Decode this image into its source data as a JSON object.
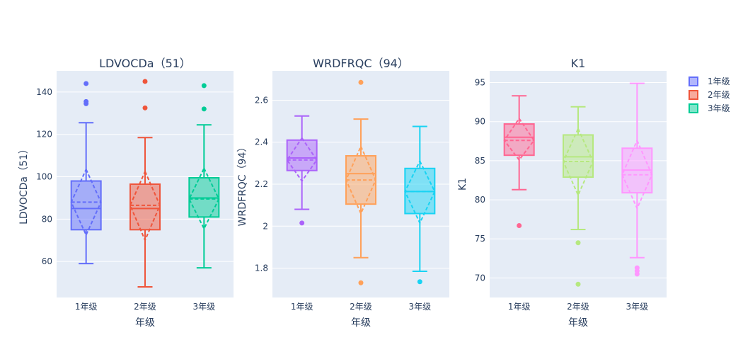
{
  "chart_data": [
    {
      "type": "box",
      "title": "LDVOCDa（51）",
      "xlabel": "年级",
      "ylabel": "LDVOCDa（51）",
      "categories": [
        "1年级",
        "2年级",
        "3年级"
      ],
      "ylim": [
        43,
        150
      ],
      "yticks": [
        60,
        80,
        100,
        120,
        140
      ],
      "ytick_labels": [
        "60",
        "80",
        "100",
        "120",
        "140"
      ],
      "boxes": [
        {
          "name": "1年级",
          "lower_fence": 59,
          "q1": 75,
          "median": 85,
          "mean": 88,
          "q3": 98,
          "upper_fence": 125.5,
          "sd_low": 72.5,
          "sd_high": 103.5,
          "outliers": [
            134.5,
            135.5,
            144
          ]
        },
        {
          "name": "2年级",
          "lower_fence": 48,
          "q1": 75,
          "median": 85,
          "mean": 86.5,
          "q3": 96.5,
          "upper_fence": 118.5,
          "sd_low": 70,
          "sd_high": 102.5,
          "outliers": [
            132.5,
            145
          ]
        },
        {
          "name": "3年级",
          "lower_fence": 57,
          "q1": 81,
          "median": 90,
          "mean": 89.5,
          "q3": 99.5,
          "upper_fence": 124.5,
          "sd_low": 75.5,
          "sd_high": 104,
          "outliers": [
            132,
            143
          ]
        }
      ]
    },
    {
      "type": "box",
      "title": "WRDFRQC（94）",
      "xlabel": "年级",
      "ylabel": "WRDFRQC（94）",
      "categories": [
        "1年级",
        "2年级",
        "3年级"
      ],
      "ylim": [
        1.66,
        2.74
      ],
      "yticks": [
        1.8,
        2.0,
        2.2,
        2.4,
        2.6
      ],
      "ytick_labels": [
        "1.8",
        "2",
        "2.2",
        "2.4",
        "2.6"
      ],
      "boxes": [
        {
          "name": "1年级",
          "lower_fence": 2.08,
          "q1": 2.265,
          "median": 2.325,
          "mean": 2.315,
          "q3": 2.41,
          "upper_fence": 2.525,
          "sd_low": 2.215,
          "sd_high": 2.42,
          "outliers": [
            2.015
          ]
        },
        {
          "name": "2年级",
          "lower_fence": 1.85,
          "q1": 2.105,
          "median": 2.25,
          "mean": 2.22,
          "q3": 2.335,
          "upper_fence": 2.51,
          "sd_low": 2.06,
          "sd_high": 2.38,
          "outliers": [
            1.73,
            2.685
          ]
        },
        {
          "name": "3年级",
          "lower_fence": 1.785,
          "q1": 2.06,
          "median": 2.165,
          "mean": 2.165,
          "q3": 2.275,
          "upper_fence": 2.475,
          "sd_low": 2.015,
          "sd_high": 2.31,
          "outliers": [
            1.735
          ]
        }
      ]
    },
    {
      "type": "box",
      "title": "K1",
      "xlabel": "年级",
      "ylabel": "K1",
      "categories": [
        "1年级",
        "2年级",
        "3年级"
      ],
      "ylim": [
        67.5,
        96.5
      ],
      "yticks": [
        70,
        75,
        80,
        85,
        90,
        95
      ],
      "ytick_labels": [
        "70",
        "75",
        "80",
        "85",
        "90",
        "95"
      ],
      "boxes": [
        {
          "name": "1年级",
          "lower_fence": 81.3,
          "q1": 85.7,
          "median": 88,
          "mean": 87.6,
          "q3": 89.7,
          "upper_fence": 93.3,
          "sd_low": 85.1,
          "sd_high": 90.4,
          "outliers": [
            76.7
          ]
        },
        {
          "name": "2年级",
          "lower_fence": 76.2,
          "q1": 82.9,
          "median": 85.5,
          "mean": 84.9,
          "q3": 88.3,
          "upper_fence": 91.9,
          "sd_low": 80.6,
          "sd_high": 89.1,
          "outliers": [
            74.5,
            69.2
          ]
        },
        {
          "name": "3年级",
          "lower_fence": 72.6,
          "q1": 80.9,
          "median": 83.8,
          "mean": 83.2,
          "q3": 86.6,
          "upper_fence": 94.9,
          "sd_low": 78.9,
          "sd_high": 87.6,
          "outliers": [
            70.5,
            70.9,
            71.3
          ]
        }
      ]
    }
  ],
  "legend": {
    "placement": "top-right",
    "items": [
      {
        "label": "1年级"
      },
      {
        "label": "2年级"
      },
      {
        "label": "3年级"
      }
    ]
  },
  "colors": {
    "plot_bg": "#e5ecf6",
    "grid": "#ffffff",
    "text": "#2a3f5f",
    "panels": [
      [
        "#636efa",
        "#ef553b",
        "#00cc96"
      ],
      [
        "#ab63fa",
        "#ffa15a",
        "#19d3f3"
      ],
      [
        "#ff6692",
        "#b6e880",
        "#ff97ff"
      ]
    ],
    "legend": [
      "#636efa",
      "#ef553b",
      "#00cc96"
    ]
  }
}
